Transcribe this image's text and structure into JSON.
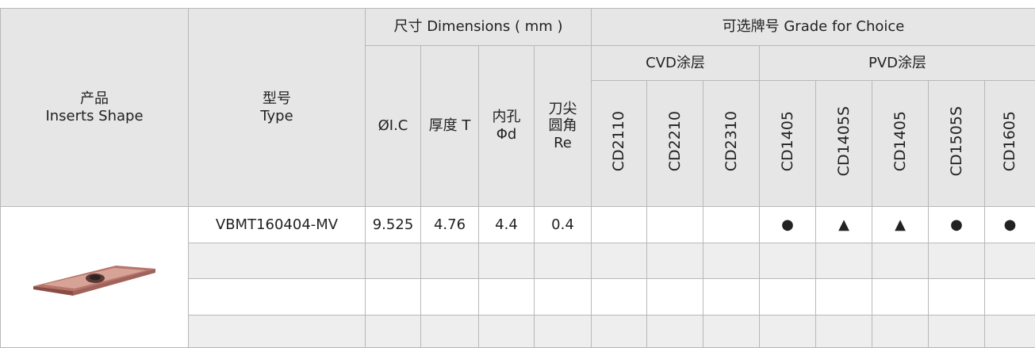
{
  "header": {
    "shape_cn": "产品",
    "shape_en": "Inserts Shape",
    "type_cn": "型号",
    "type_en": "Type",
    "dimensions": "尺寸 Dimensions ( mm )",
    "grades": "可选牌号 Grade for Choice",
    "cvd": "CVD涂层",
    "pvd": "PVD涂层",
    "dimension_columns": [
      [
        "ØI.C"
      ],
      [
        "厚度 T"
      ],
      [
        "内孔",
        "Φd"
      ],
      [
        "刀尖",
        "圆角",
        "Re"
      ]
    ],
    "grade_columns": [
      "CD2110",
      "CD2210",
      "CD2310",
      "CD1405",
      "CD1405S",
      "CD1405",
      "CD1505S",
      "CD1605"
    ]
  },
  "rows": [
    {
      "type": "VBMT160404-MV",
      "dimensions": [
        "9.525",
        "4.76",
        "4.4",
        "0.4"
      ],
      "grades": [
        null,
        null,
        null,
        "●",
        "▲",
        "▲",
        "●",
        "●"
      ]
    }
  ]
}
